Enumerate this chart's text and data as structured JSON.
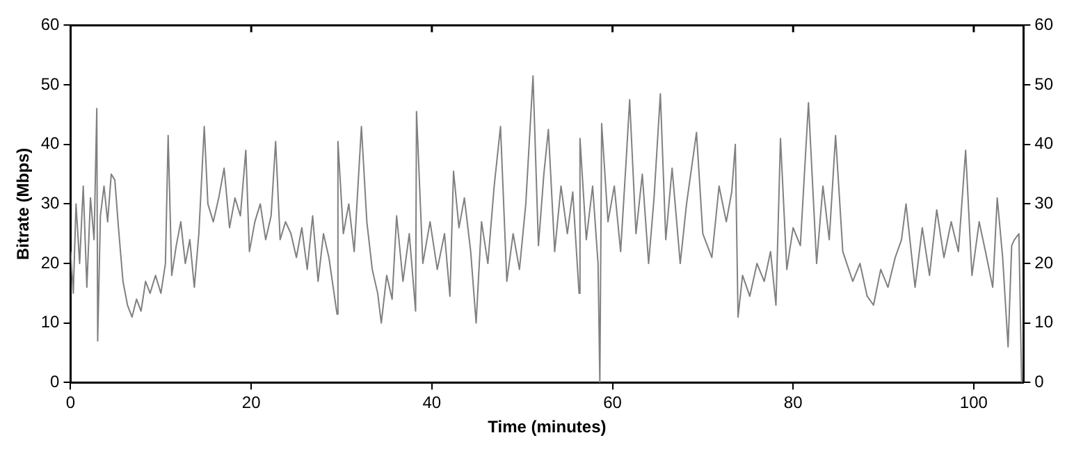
{
  "chart_data": {
    "type": "line",
    "xlabel": "Time (minutes)",
    "ylabel": "Bitrate (Mbps)",
    "xlim": [
      0,
      105.5
    ],
    "xticks": [
      0,
      20,
      40,
      60,
      80,
      100
    ],
    "ylim": [
      0,
      60
    ],
    "yticks": [
      0,
      10,
      20,
      30,
      40,
      50,
      60
    ],
    "y2lim": [
      0,
      60
    ],
    "y2ticks": [
      0,
      10,
      20,
      30,
      40,
      50,
      60
    ],
    "grid": false,
    "legend": false,
    "marker": "none",
    "line_style": "solid",
    "series": [
      {
        "color": "#808080",
        "x": [
          0,
          0.3,
          0.6,
          1,
          1.4,
          1.8,
          2.2,
          2.6,
          2.9,
          3,
          3.3,
          3.7,
          4.1,
          4.5,
          4.9,
          5.3,
          5.8,
          6.3,
          6.8,
          7.3,
          7.8,
          8.3,
          8.8,
          9.4,
          10,
          10.5,
          10.8,
          11.2,
          11.7,
          12.2,
          12.7,
          13.2,
          13.7,
          14.2,
          14.8,
          15.2,
          15.8,
          16.4,
          17,
          17.6,
          18.2,
          18.8,
          19.4,
          19.8,
          20.4,
          21,
          21.6,
          22.2,
          22.7,
          23.2,
          23.8,
          24.4,
          25,
          25.6,
          26.2,
          26.8,
          27.4,
          28,
          28.6,
          29.5,
          29.6,
          30.2,
          30.8,
          31.4,
          32.2,
          32.8,
          33.4,
          34,
          34.4,
          35,
          35.6,
          36.1,
          36.8,
          37.5,
          38.2,
          38.3,
          39,
          39.8,
          40.6,
          41.4,
          42,
          42.4,
          43,
          43.6,
          44.3,
          44.9,
          45.5,
          46.2,
          46.9,
          47.6,
          48.3,
          49,
          49.7,
          50.4,
          51.2,
          51.8,
          52.4,
          52.9,
          53.6,
          54.3,
          55,
          55.6,
          56.3,
          56.4,
          57.1,
          57.8,
          58.4,
          58.6,
          58.8,
          59.5,
          60.2,
          60.9,
          61.5,
          61.9,
          62.6,
          63.3,
          64,
          64.6,
          65.3,
          65.9,
          66.6,
          67.5,
          68.2,
          69.3,
          70,
          71,
          71.8,
          72.6,
          73.2,
          73.6,
          73.9,
          74.4,
          75.2,
          76,
          76.8,
          77.5,
          78.1,
          78.6,
          79.3,
          80,
          80.8,
          81.7,
          82.6,
          83.3,
          84,
          84.7,
          85.5,
          86.6,
          87.4,
          88.2,
          88.9,
          89.7,
          90.5,
          91.3,
          92,
          92.5,
          93.5,
          94.3,
          95.1,
          95.9,
          96.7,
          97.5,
          98.3,
          99.1,
          99.8,
          100.6,
          101.3,
          102.1,
          102.6,
          103.2,
          103.8,
          104.2,
          104.5,
          105,
          105.3
        ],
        "values": [
          22,
          15,
          30,
          20,
          33,
          16,
          31,
          24,
          46,
          7,
          28,
          33,
          27,
          35,
          34,
          26,
          17,
          13,
          11,
          14,
          12,
          17,
          15,
          18,
          15,
          20,
          41.5,
          18,
          23,
          27,
          20,
          24,
          16,
          25,
          43,
          30,
          27,
          31,
          36,
          26,
          31,
          28,
          39,
          22,
          27,
          30,
          24,
          28,
          40.5,
          24,
          27,
          25,
          21,
          26,
          19,
          28,
          17,
          25,
          21,
          11.5,
          40.5,
          25,
          30,
          22,
          43,
          27,
          19,
          15,
          10,
          18,
          14,
          28,
          17,
          25,
          12,
          45.5,
          20,
          27,
          19,
          25,
          14.5,
          35.5,
          26,
          31,
          22,
          10,
          27,
          20,
          33,
          43,
          17,
          25,
          19,
          30,
          51.5,
          23,
          35,
          42.5,
          22,
          33,
          25,
          32,
          15,
          41,
          24,
          33,
          20,
          0,
          43.5,
          27,
          33,
          22,
          37,
          47.5,
          25,
          35,
          20,
          31,
          48.5,
          24,
          36,
          20,
          30,
          42,
          25,
          21,
          33,
          27,
          32,
          40,
          11,
          18,
          14.5,
          20,
          17,
          22,
          13,
          41,
          19,
          26,
          23,
          47,
          20,
          33,
          24,
          41.5,
          22,
          17,
          20,
          14.5,
          13,
          19,
          16,
          21,
          24,
          30,
          16,
          26,
          18,
          29,
          21,
          27,
          22,
          39,
          18,
          27,
          22,
          16,
          31,
          21,
          6,
          23,
          24,
          25,
          0
        ]
      }
    ]
  }
}
